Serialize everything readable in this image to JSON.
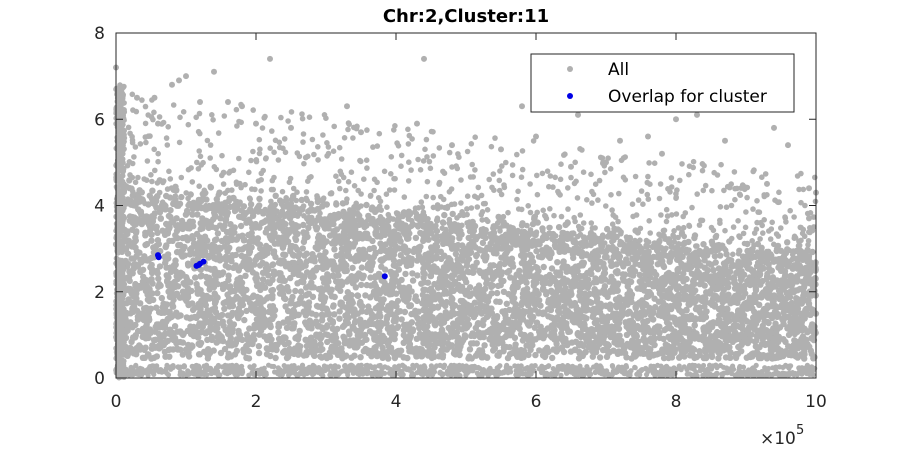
{
  "chart_data": {
    "type": "scatter",
    "title": "Chr:2,Cluster:11",
    "xlabel": "",
    "ylabel": "",
    "xlim": [
      0,
      1000000
    ],
    "ylim": [
      0,
      8
    ],
    "x_ticks": [
      0,
      200000,
      400000,
      600000,
      800000,
      1000000
    ],
    "x_tick_labels": [
      "0",
      "2",
      "4",
      "6",
      "8",
      "10"
    ],
    "x_exponent": {
      "base": "×10",
      "power": "5"
    },
    "y_ticks": [
      0,
      2,
      4,
      6,
      8
    ],
    "y_tick_labels": [
      "0",
      "2",
      "4",
      "6",
      "8"
    ],
    "grid": false,
    "legend_position": "top-right",
    "series": [
      {
        "name": "All",
        "color": "#b0b0b0",
        "description_points": [
          [
            0,
            7.2
          ],
          [
            2000,
            6.6
          ],
          [
            4000,
            5.9
          ],
          [
            10000,
            6.2
          ],
          [
            30000,
            6.5
          ],
          [
            55000,
            6.5
          ],
          [
            60000,
            5.9
          ],
          [
            80000,
            6.8
          ],
          [
            90000,
            6.9
          ],
          [
            100000,
            7.0
          ],
          [
            140000,
            7.1
          ],
          [
            220000,
            7.4
          ],
          [
            180000,
            6.3
          ],
          [
            120000,
            6.4
          ],
          [
            330000,
            6.3
          ],
          [
            440000,
            7.4
          ],
          [
            430000,
            5.9
          ],
          [
            580000,
            6.3
          ],
          [
            600000,
            5.6
          ],
          [
            660000,
            6.1
          ],
          [
            720000,
            5.5
          ],
          [
            760000,
            5.6
          ],
          [
            780000,
            5.2
          ],
          [
            800000,
            6.0
          ],
          [
            830000,
            6.1
          ],
          [
            870000,
            5.5
          ],
          [
            940000,
            5.8
          ],
          [
            960000,
            5.4
          ],
          [
            990000,
            4.4
          ],
          [
            1000000,
            4.3
          ],
          [
            930000,
            4.5
          ],
          [
            990000,
            3.7
          ],
          [
            650000,
            4.9
          ],
          [
            550000,
            5.3
          ],
          [
            250000,
            5.8
          ],
          [
            480000,
            5.4
          ],
          [
            350000,
            5.7
          ],
          [
            160000,
            6.4
          ],
          [
            200000,
            5.9
          ],
          [
            700000,
            5.0
          ]
        ]
      },
      {
        "name": "Overlap for cluster",
        "color": "#0000e6",
        "points": [
          [
            60000,
            2.85
          ],
          [
            61000,
            2.8
          ],
          [
            115000,
            2.6
          ],
          [
            118000,
            2.62
          ],
          [
            120000,
            2.65
          ],
          [
            125000,
            2.7
          ],
          [
            384000,
            2.36
          ]
        ]
      }
    ]
  }
}
